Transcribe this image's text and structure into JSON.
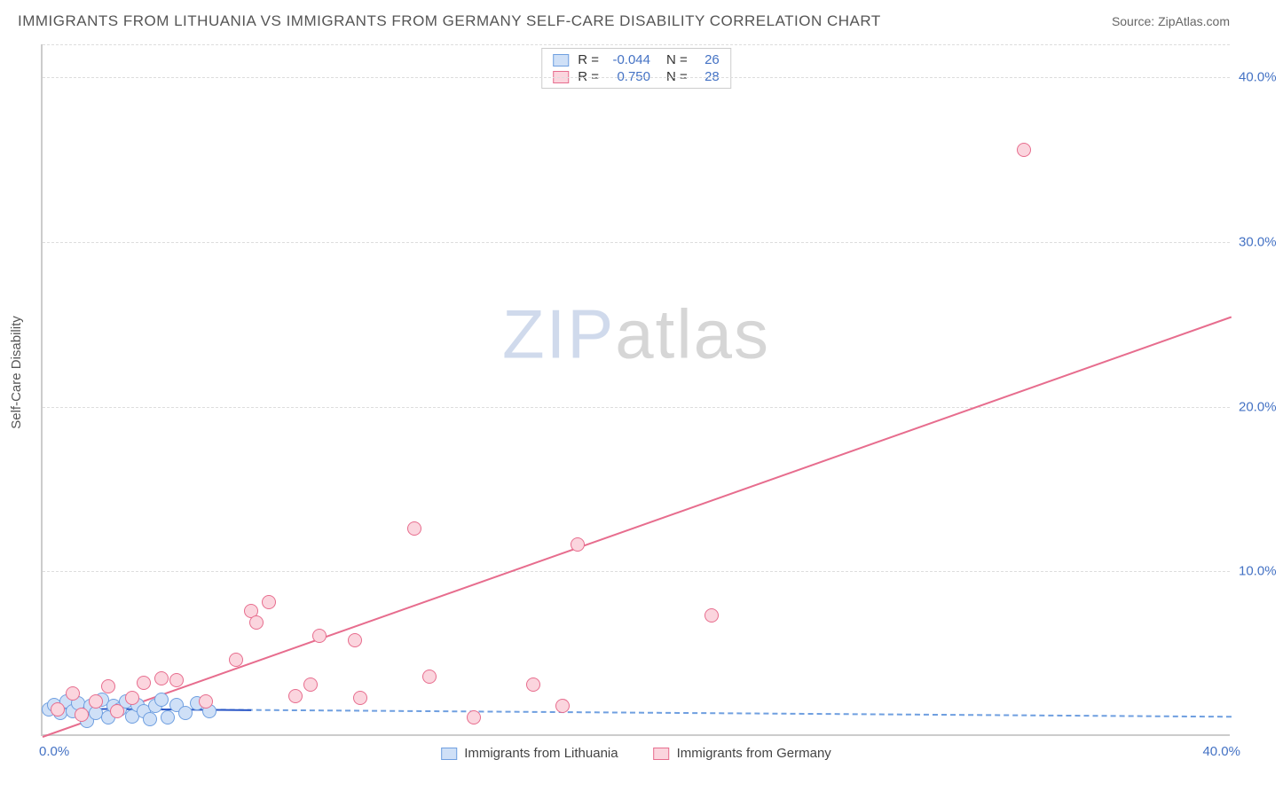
{
  "header": {
    "title": "IMMIGRANTS FROM LITHUANIA VS IMMIGRANTS FROM GERMANY SELF-CARE DISABILITY CORRELATION CHART",
    "source": "Source: ZipAtlas.com"
  },
  "chart": {
    "type": "scatter",
    "y_label": "Self-Care Disability",
    "xlim": [
      0,
      40
    ],
    "ylim": [
      0,
      42
    ],
    "y_ticks": [
      10,
      20,
      30,
      40
    ],
    "y_tick_labels": [
      "10.0%",
      "20.0%",
      "30.0%",
      "40.0%"
    ],
    "x_min_label": "0.0%",
    "x_max_label": "40.0%",
    "background_color": "#ffffff",
    "grid_color": "#dddddd",
    "axis_color": "#cccccc",
    "tick_label_color": "#4472c4",
    "watermark": {
      "zip": "ZIP",
      "atlas": "atlas"
    },
    "series": [
      {
        "name": "Immigrants from Lithuania",
        "key": "lithuania",
        "fill": "#cfe0f7",
        "stroke": "#6f9fe0",
        "r_value": "-0.044",
        "n_value": "26",
        "trend": {
          "style": "dashed",
          "color": "#6f9fe0",
          "x1": 0,
          "y1": 1.7,
          "x2": 40,
          "y2": 1.2
        },
        "trend_solid_segment": {
          "color": "#2a56c6",
          "x1": 0,
          "y1": 1.7,
          "x2": 7,
          "y2": 1.6
        },
        "points": [
          [
            0.2,
            1.5
          ],
          [
            0.4,
            1.8
          ],
          [
            0.6,
            1.3
          ],
          [
            0.8,
            2.0
          ],
          [
            1.0,
            1.4
          ],
          [
            1.2,
            1.9
          ],
          [
            1.4,
            1.2
          ],
          [
            1.5,
            0.8
          ],
          [
            1.6,
            1.7
          ],
          [
            1.8,
            1.3
          ],
          [
            2.0,
            2.1
          ],
          [
            2.2,
            1.0
          ],
          [
            2.4,
            1.7
          ],
          [
            2.6,
            1.5
          ],
          [
            2.8,
            2.0
          ],
          [
            3.0,
            1.1
          ],
          [
            3.2,
            1.8
          ],
          [
            3.4,
            1.4
          ],
          [
            3.6,
            0.9
          ],
          [
            3.8,
            1.7
          ],
          [
            4.0,
            2.1
          ],
          [
            4.2,
            1.0
          ],
          [
            4.5,
            1.8
          ],
          [
            4.8,
            1.3
          ],
          [
            5.2,
            1.9
          ],
          [
            5.6,
            1.4
          ]
        ]
      },
      {
        "name": "Immigrants from Germany",
        "key": "germany",
        "fill": "#fbd5de",
        "stroke": "#e76d8e",
        "r_value": "0.750",
        "n_value": "28",
        "trend": {
          "style": "solid",
          "color": "#e76d8e",
          "x1": 0,
          "y1": 0,
          "x2": 40,
          "y2": 25.5
        },
        "points": [
          [
            0.5,
            1.5
          ],
          [
            1.0,
            2.5
          ],
          [
            1.3,
            1.2
          ],
          [
            1.8,
            2.0
          ],
          [
            2.2,
            2.9
          ],
          [
            2.5,
            1.4
          ],
          [
            3.0,
            2.2
          ],
          [
            3.4,
            3.1
          ],
          [
            4.0,
            3.4
          ],
          [
            4.5,
            3.3
          ],
          [
            5.5,
            2.0
          ],
          [
            6.5,
            4.5
          ],
          [
            7.0,
            7.5
          ],
          [
            7.2,
            6.8
          ],
          [
            7.6,
            8.0
          ],
          [
            8.5,
            2.3
          ],
          [
            9.0,
            3.0
          ],
          [
            9.3,
            6.0
          ],
          [
            10.5,
            5.7
          ],
          [
            10.7,
            2.2
          ],
          [
            12.5,
            12.5
          ],
          [
            13.0,
            3.5
          ],
          [
            14.5,
            1.0
          ],
          [
            16.5,
            3.0
          ],
          [
            17.5,
            1.7
          ],
          [
            18.0,
            11.5
          ],
          [
            22.5,
            7.2
          ],
          [
            33.0,
            35.5
          ]
        ]
      }
    ]
  }
}
